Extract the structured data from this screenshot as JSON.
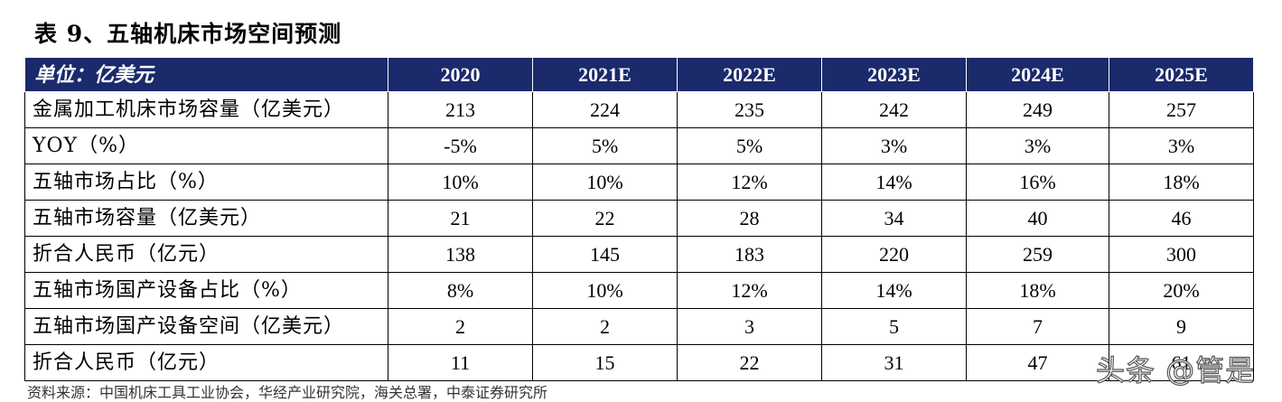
{
  "title": "表 9、五轴机床市场空间预测",
  "header": {
    "unit_label": "单位：亿美元",
    "columns": [
      "2020",
      "2021E",
      "2022E",
      "2023E",
      "2024E",
      "2025E"
    ]
  },
  "rows": [
    {
      "label": "金属加工机床市场容量（亿美元）",
      "values": [
        "213",
        "224",
        "235",
        "242",
        "249",
        "257"
      ]
    },
    {
      "label": "YOY（%）",
      "values": [
        "-5%",
        "5%",
        "5%",
        "3%",
        "3%",
        "3%"
      ]
    },
    {
      "label": "五轴市场占比（%）",
      "values": [
        "10%",
        "10%",
        "12%",
        "14%",
        "16%",
        "18%"
      ]
    },
    {
      "label": "五轴市场容量（亿美元）",
      "values": [
        "21",
        "22",
        "28",
        "34",
        "40",
        "46"
      ]
    },
    {
      "label": "折合人民币（亿元）",
      "values": [
        "138",
        "145",
        "183",
        "220",
        "259",
        "300"
      ]
    },
    {
      "label": "五轴市场国产设备占比（%）",
      "values": [
        "8%",
        "10%",
        "12%",
        "14%",
        "18%",
        "20%"
      ]
    },
    {
      "label": "五轴市场国产设备空间（亿美元）",
      "values": [
        "2",
        "2",
        "3",
        "5",
        "7",
        "9"
      ]
    },
    {
      "label": "折合人民币（亿元）",
      "values": [
        "11",
        "15",
        "22",
        "31",
        "47",
        "61"
      ]
    }
  ],
  "footnote": "资料来源：中国机床工具工业协会，华经产业研究院，海关总署，中泰证券研究所",
  "watermark": "头条 @管是",
  "colors": {
    "header_bg": "#1a2a6b",
    "header_text": "#ffffff",
    "border": "#000000"
  }
}
